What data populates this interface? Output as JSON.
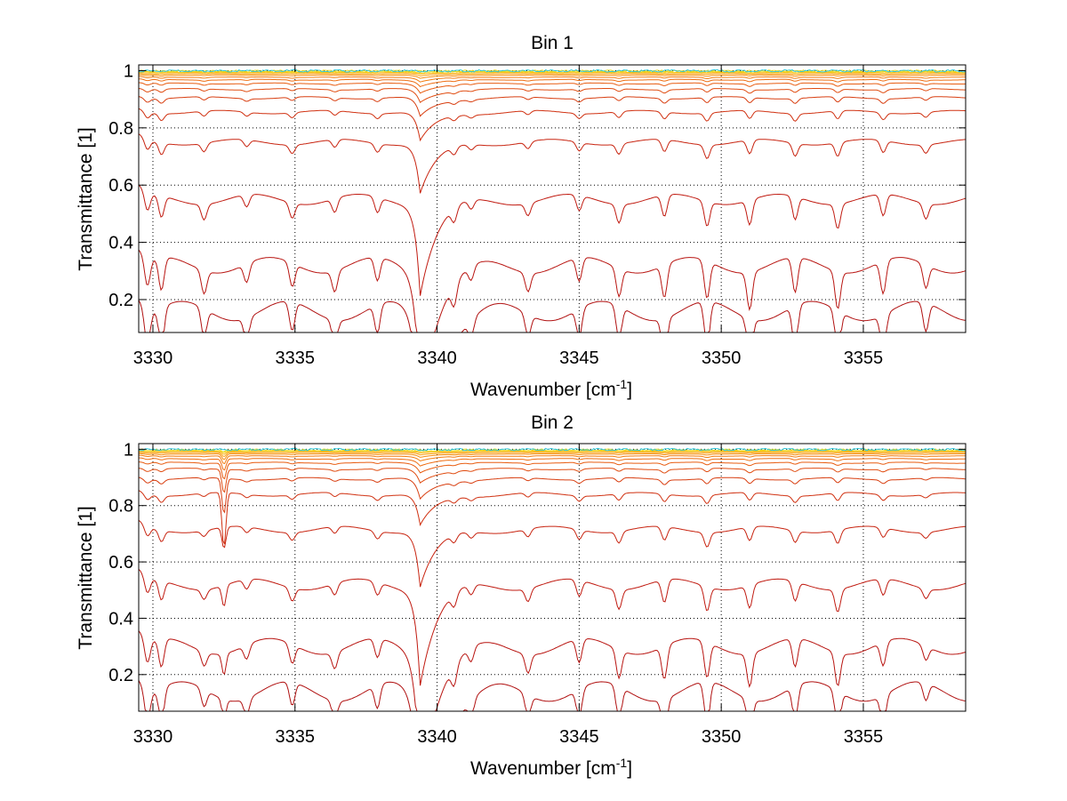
{
  "figure": {
    "background": "#ffffff",
    "axis_color": "#000000",
    "grid_color": "#000000"
  },
  "chart_data": [
    {
      "type": "line",
      "title": "Bin 1",
      "xlabel": {
        "text": "Wavenumber [cm",
        "sup": "-1",
        "suffix": "]"
      },
      "ylabel": "Transmittance [1]",
      "xlim": [
        3329.5,
        3358.6
      ],
      "ylim": [
        0.085,
        1.02
      ],
      "xticks": [
        3330,
        3335,
        3340,
        3345,
        3350,
        3355
      ],
      "xtick_labels": [
        "3330",
        "3335",
        "3340",
        "3345",
        "3350",
        "3355"
      ],
      "yticks": [
        0.2,
        0.4,
        0.6,
        0.8,
        1
      ],
      "ytick_labels": [
        "0.2",
        "0.4",
        "0.6",
        "0.8",
        "1"
      ],
      "grid": true,
      "grid_style": "dotted",
      "colormap": "dark red (lowest transmittance) through orange and yellow to cyan (near 1)",
      "series_baselines": [
        0.16,
        0.32,
        0.55,
        0.75,
        0.855,
        0.905,
        0.935,
        0.955,
        0.968,
        0.977,
        0.984,
        0.989,
        0.993,
        0.996,
        0.998,
        0.999
      ],
      "series_colors": [
        "#b01010",
        "#b81410",
        "#c01a10",
        "#c82410",
        "#d03010",
        "#d83e10",
        "#e04c10",
        "#e85c10",
        "#ee6c10",
        "#f27c10",
        "#f68e10",
        "#f9a010",
        "#fbb410",
        "#f8cc10",
        "#e8dc20",
        "#30c8d8"
      ],
      "main_line_x": 3339.4,
      "line_positions": [
        3329.8,
        3330.3,
        3331.8,
        3333.3,
        3334.9,
        3336.4,
        3337.9,
        3340.6,
        3341.2,
        3343.2,
        3345.0,
        3346.4,
        3348.0,
        3349.5,
        3351.0,
        3352.6,
        3354.1,
        3355.7,
        3357.2
      ],
      "line_depths": [
        0.12,
        0.14,
        0.1,
        0.08,
        0.1,
        0.09,
        0.1,
        0.09,
        0.06,
        0.08,
        0.1,
        0.12,
        0.14,
        0.16,
        0.16,
        0.15,
        0.16,
        0.14,
        0.1
      ]
    },
    {
      "type": "line",
      "title": "Bin 2",
      "xlabel": {
        "text": "Wavenumber [cm",
        "sup": "-1",
        "suffix": "]"
      },
      "ylabel": "Transmittance [1]",
      "xlim": [
        3329.5,
        3358.6
      ],
      "ylim": [
        0.07,
        1.02
      ],
      "xticks": [
        3330,
        3335,
        3340,
        3345,
        3350,
        3355
      ],
      "xtick_labels": [
        "3330",
        "3335",
        "3340",
        "3345",
        "3350",
        "3355"
      ],
      "yticks": [
        0.2,
        0.4,
        0.6,
        0.8,
        1
      ],
      "ytick_labels": [
        "0.2",
        "0.4",
        "0.6",
        "0.8",
        "1"
      ],
      "grid": true,
      "grid_style": "dotted",
      "colormap": "dark red (lowest transmittance) through orange and yellow to cyan (near 1)",
      "series_baselines": [
        0.14,
        0.3,
        0.52,
        0.715,
        0.84,
        0.895,
        0.93,
        0.952,
        0.966,
        0.976,
        0.983,
        0.988,
        0.992,
        0.995,
        0.997,
        0.999
      ],
      "series_colors": [
        "#b01010",
        "#b81410",
        "#c01a10",
        "#c82410",
        "#d03010",
        "#d83e10",
        "#e04c10",
        "#e85c10",
        "#ee6c10",
        "#f27c10",
        "#f68e10",
        "#f9a010",
        "#fbb410",
        "#f8cc10",
        "#e8dc20",
        "#30c8d8"
      ],
      "main_line_x": 3339.4,
      "spike_x": 3332.5,
      "line_positions": [
        3329.8,
        3330.3,
        3331.8,
        3333.3,
        3334.9,
        3336.4,
        3337.9,
        3340.6,
        3341.2,
        3343.2,
        3345.0,
        3346.4,
        3348.0,
        3349.5,
        3351.0,
        3352.6,
        3354.1,
        3355.7,
        3357.2
      ],
      "line_depths": [
        0.1,
        0.12,
        0.06,
        0.06,
        0.08,
        0.07,
        0.08,
        0.08,
        0.06,
        0.08,
        0.1,
        0.12,
        0.14,
        0.15,
        0.14,
        0.12,
        0.14,
        0.1,
        0.06
      ]
    }
  ]
}
